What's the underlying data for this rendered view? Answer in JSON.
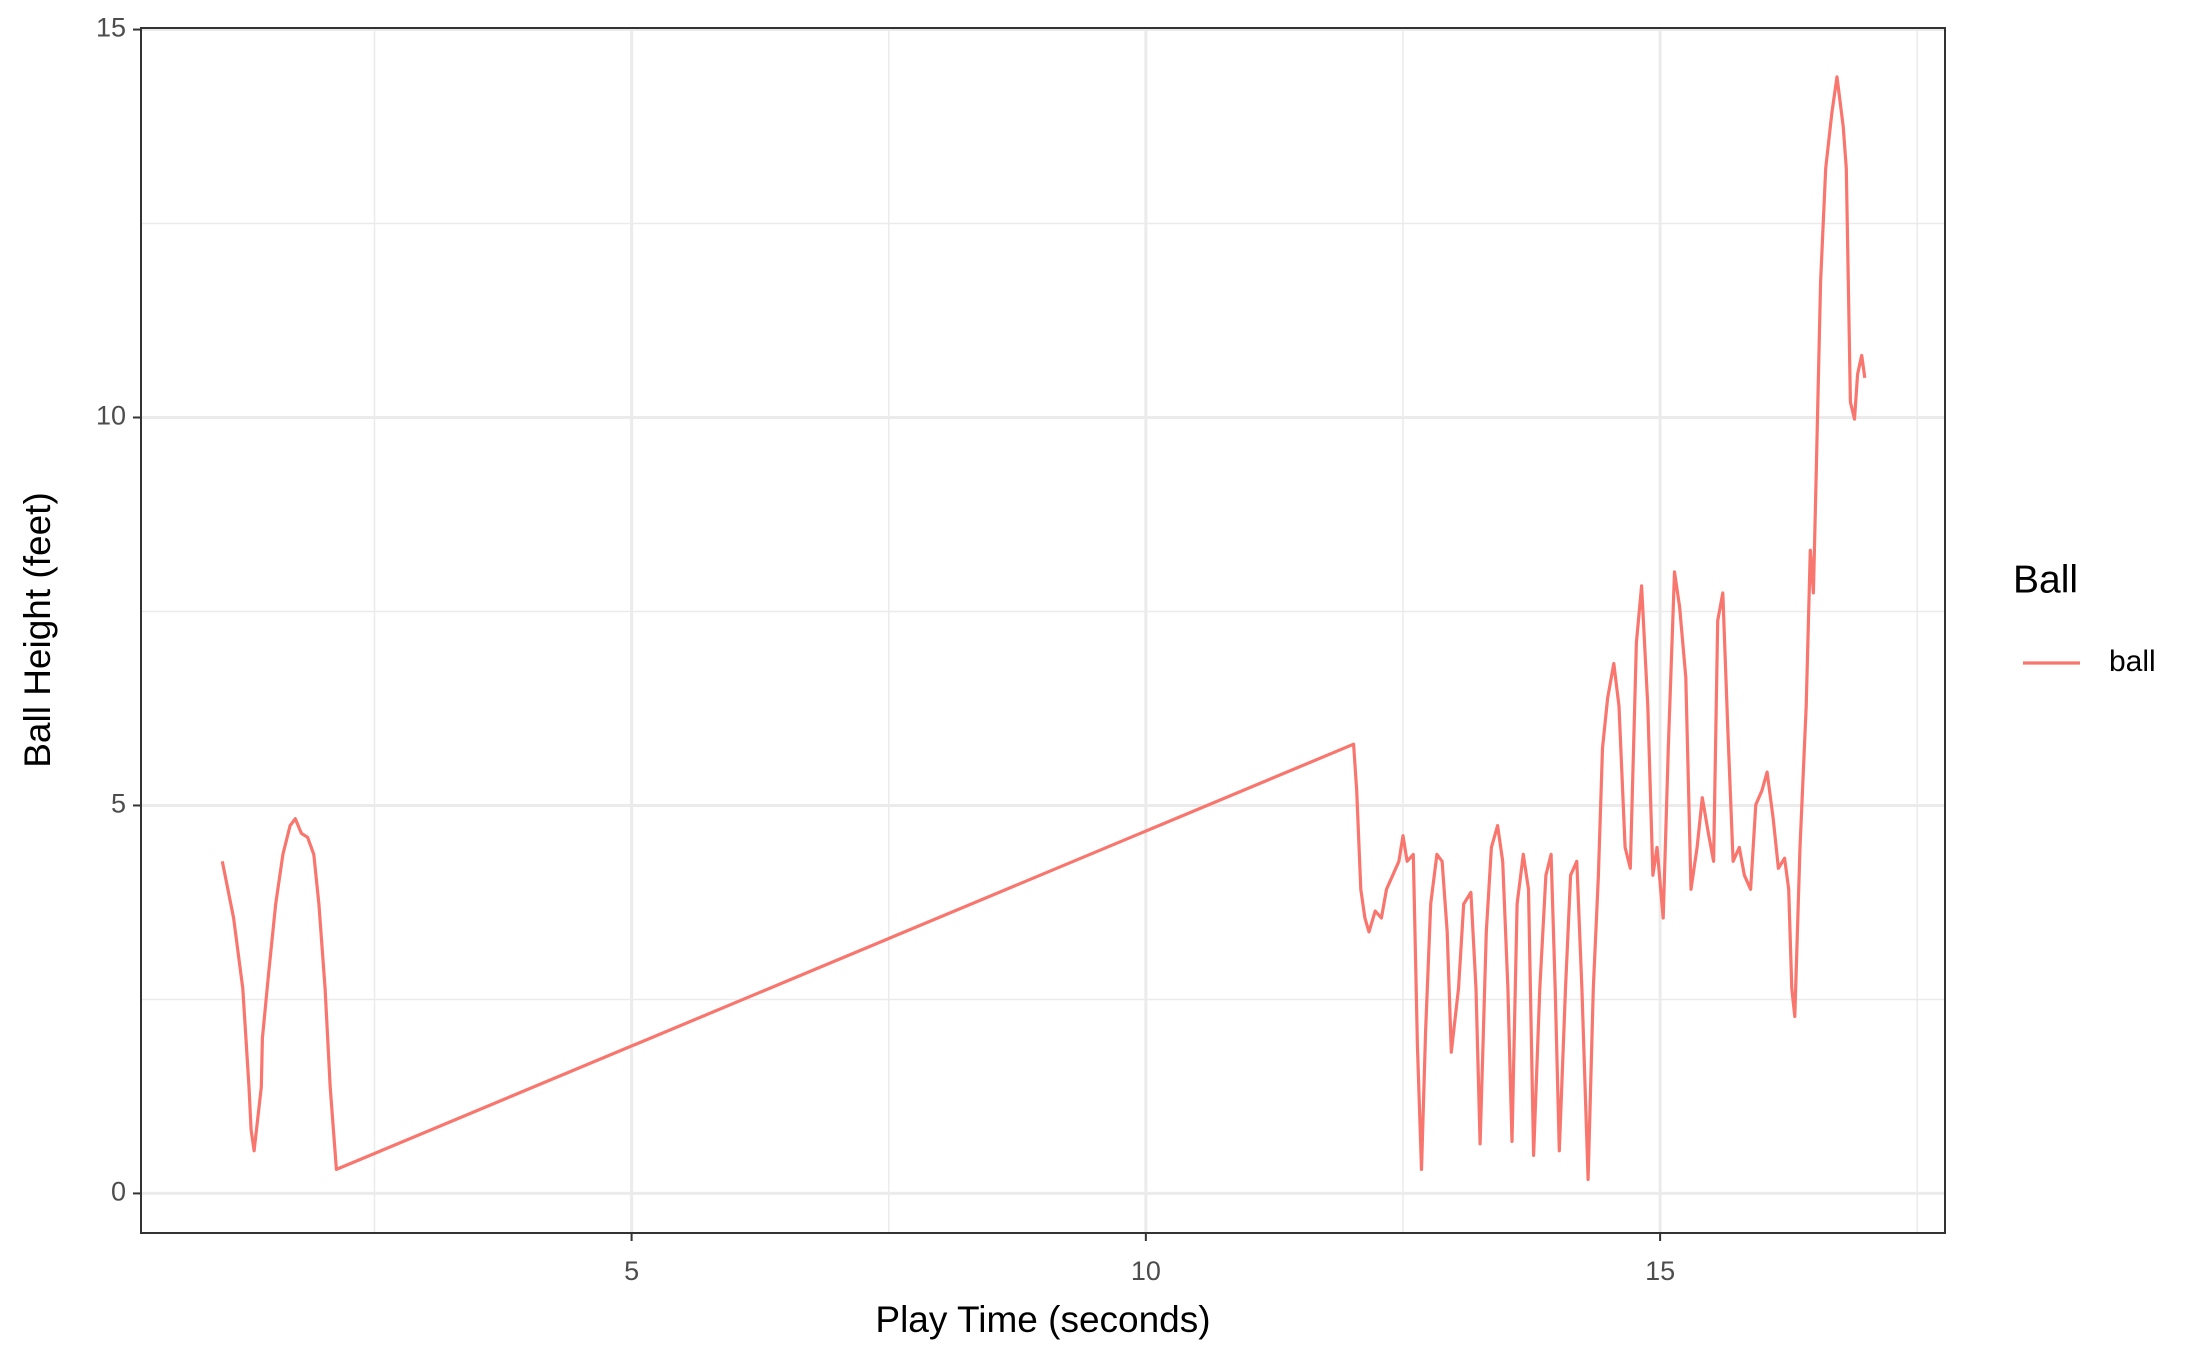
{
  "chart_data": {
    "type": "line",
    "xlabel": "Play Time (seconds)",
    "ylabel": "Ball Height (feet)",
    "legend_title": "Ball",
    "xlim": [
      0.23,
      17.77
    ],
    "ylim": [
      -0.51,
      15.02
    ],
    "xticks": [
      5,
      10,
      15
    ],
    "yticks": [
      0,
      5,
      10,
      15
    ],
    "grid": true,
    "x": [
      1.02,
      1.13,
      1.22,
      1.28,
      1.3,
      1.33,
      1.4,
      1.41,
      1.47,
      1.54,
      1.61,
      1.68,
      1.73,
      1.79,
      1.85,
      1.91,
      1.96,
      2.02,
      2.07,
      2.13,
      12.02,
      12.05,
      12.09,
      12.13,
      12.17,
      12.23,
      12.29,
      12.34,
      12.4,
      12.46,
      12.5,
      12.54,
      12.6,
      12.64,
      12.68,
      12.72,
      12.77,
      12.83,
      12.88,
      12.93,
      12.97,
      13.04,
      13.09,
      13.16,
      13.21,
      13.25,
      13.31,
      13.36,
      13.42,
      13.47,
      13.52,
      13.56,
      13.61,
      13.67,
      13.72,
      13.77,
      13.83,
      13.89,
      13.94,
      13.98,
      14.02,
      14.08,
      14.13,
      14.19,
      14.24,
      14.3,
      14.35,
      14.4,
      14.44,
      14.49,
      14.55,
      14.6,
      14.66,
      14.71,
      14.77,
      14.82,
      14.88,
      14.93,
      14.97,
      15.03,
      15.08,
      15.14,
      15.19,
      15.25,
      15.3,
      15.36,
      15.41,
      15.47,
      15.52,
      15.56,
      15.61,
      15.66,
      15.71,
      15.77,
      15.82,
      15.88,
      15.93,
      15.99,
      16.04,
      16.1,
      16.15,
      16.21,
      16.25,
      16.28,
      16.31,
      16.36,
      16.42,
      16.46,
      16.49,
      16.52,
      16.56,
      16.61,
      16.67,
      16.72,
      16.78,
      16.81,
      16.83,
      16.85,
      16.89,
      16.92,
      16.96,
      16.99
    ],
    "series": [
      {
        "name": "ball",
        "color": "#F8766D",
        "values": [
          4.28,
          3.55,
          2.64,
          1.37,
          0.82,
          0.55,
          1.37,
          2.0,
          2.82,
          3.73,
          4.37,
          4.74,
          4.83,
          4.64,
          4.59,
          4.37,
          3.73,
          2.64,
          1.37,
          0.31,
          5.79,
          5.19,
          3.92,
          3.55,
          3.37,
          3.64,
          3.55,
          3.92,
          4.1,
          4.28,
          4.61,
          4.28,
          4.37,
          1.91,
          0.31,
          2.09,
          3.73,
          4.37,
          4.28,
          3.37,
          1.82,
          2.64,
          3.73,
          3.88,
          2.64,
          0.64,
          3.37,
          4.46,
          4.74,
          4.28,
          2.64,
          0.67,
          3.73,
          4.37,
          3.92,
          0.49,
          2.64,
          4.1,
          4.37,
          2.64,
          0.55,
          2.64,
          4.1,
          4.28,
          2.64,
          0.18,
          2.64,
          4.1,
          5.74,
          6.38,
          6.83,
          6.28,
          4.46,
          4.19,
          7.1,
          7.83,
          6.28,
          4.1,
          4.46,
          3.55,
          5.74,
          8.01,
          7.56,
          6.65,
          3.92,
          4.46,
          5.1,
          4.64,
          4.28,
          7.38,
          7.74,
          5.92,
          4.28,
          4.46,
          4.1,
          3.92,
          5.01,
          5.19,
          5.43,
          4.83,
          4.19,
          4.32,
          3.92,
          2.64,
          2.28,
          4.46,
          6.28,
          8.29,
          7.74,
          9.38,
          11.75,
          13.21,
          13.93,
          14.39,
          13.75,
          13.21,
          11.75,
          10.2,
          9.98,
          10.56,
          10.8,
          10.51
        ]
      }
    ]
  }
}
